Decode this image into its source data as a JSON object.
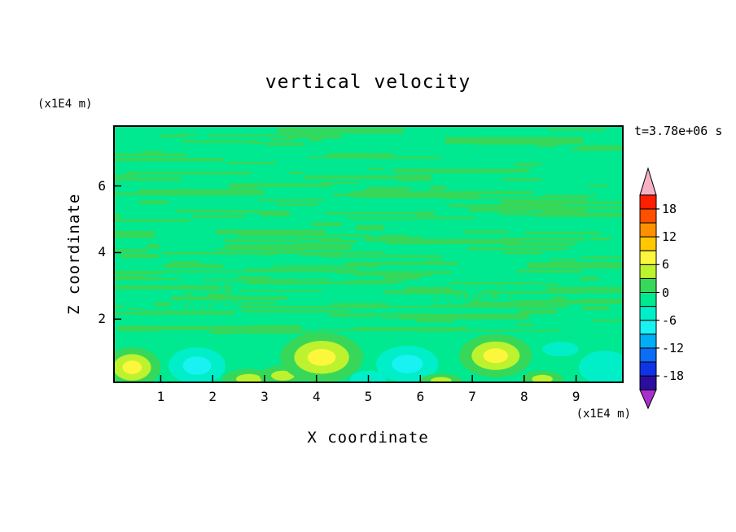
{
  "chart_data": {
    "type": "heatmap",
    "subtype": "filled-contour",
    "title": "vertical velocity",
    "time": "t=3.78e+06 s",
    "xlabel": "X coordinate",
    "ylabel": "Z coordinate",
    "x_unit": "(x1E4 m)",
    "y_unit": "(x1E4 m)",
    "x_range": [
      0.1,
      9.9
    ],
    "y_range": [
      0.1,
      7.8
    ],
    "x_ticks": [
      1,
      2,
      3,
      4,
      5,
      6,
      7,
      8,
      9
    ],
    "y_ticks": [
      2,
      4,
      6
    ],
    "grid": false,
    "colorbar_position": "right",
    "levels": {
      "min": -21,
      "max": 21,
      "step": 3,
      "colors": [
        "#2A0E9E",
        "#1133E8",
        "#0B6EF5",
        "#00AEF5",
        "#19F2F2",
        "#00EFC8",
        "#00E890",
        "#37D859",
        "#BDF22E",
        "#FCF63C",
        "#FFC800",
        "#FF9000",
        "#FF5000",
        "#FF1E00"
      ],
      "under_color": "#A92FCE",
      "over_color": "#F5B2C4"
    },
    "colorbar": {
      "labels": [
        18,
        12,
        6,
        0,
        -6,
        -12,
        -18
      ]
    },
    "background_value": -1.5,
    "streaks": {
      "value": 1.5,
      "count": 190,
      "z_min": 1.55,
      "z_max": 7.72,
      "len_min": 0.25,
      "len_max": 2.8,
      "seed": 987654321
    },
    "speckles": [
      {
        "x": 2.0,
        "z": 2.7,
        "spread_x": 0.8,
        "spread_z": 0.45,
        "count": 70
      },
      {
        "x": 7.1,
        "z": 2.7,
        "spread_x": 0.95,
        "spread_z": 0.45,
        "count": 80
      }
    ],
    "blobs": [
      {
        "x": 0.45,
        "z": 0.55,
        "rx": 0.55,
        "rz": 0.6,
        "peak": 7.5
      },
      {
        "x": 1.7,
        "z": 0.6,
        "rx": 0.55,
        "rz": 0.55,
        "peak": -7
      },
      {
        "x": 2.7,
        "z": 0.2,
        "rx": 0.5,
        "rz": 0.3,
        "peak": 4.5
      },
      {
        "x": 3.35,
        "z": 0.3,
        "rx": 0.45,
        "rz": 0.3,
        "peak": 4.5
      },
      {
        "x": 4.1,
        "z": 0.85,
        "rx": 0.8,
        "rz": 0.75,
        "peak": 8.5
      },
      {
        "x": 5.0,
        "z": 0.2,
        "rx": 0.35,
        "rz": 0.25,
        "peak": -4
      },
      {
        "x": 5.75,
        "z": 0.65,
        "rx": 0.6,
        "rz": 0.55,
        "peak": -8
      },
      {
        "x": 6.4,
        "z": 0.15,
        "rx": 0.4,
        "rz": 0.22,
        "peak": 4.5
      },
      {
        "x": 7.45,
        "z": 0.9,
        "rx": 0.7,
        "rz": 0.65,
        "peak": 7
      },
      {
        "x": 8.35,
        "z": 0.2,
        "rx": 0.4,
        "rz": 0.25,
        "peak": 4.5
      },
      {
        "x": 8.7,
        "z": 1.1,
        "rx": 0.35,
        "rz": 0.22,
        "peak": -4
      },
      {
        "x": 9.55,
        "z": 0.55,
        "rx": 0.5,
        "rz": 0.5,
        "peak": -5.5
      }
    ]
  }
}
